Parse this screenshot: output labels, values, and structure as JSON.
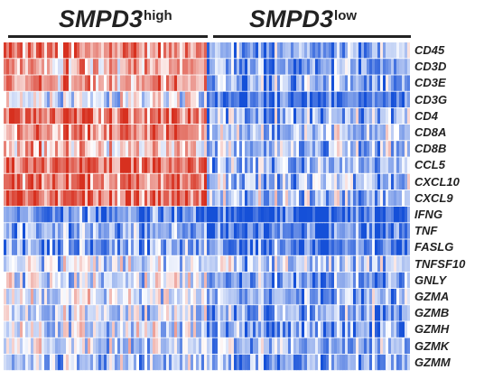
{
  "groups": {
    "high": {
      "name": "SMPD3",
      "superscript": "high"
    },
    "low": {
      "name": "SMPD3",
      "superscript": "low"
    }
  },
  "colors": {
    "high_expression": "#d7301f",
    "mid_expression": "#ffffff",
    "low_expression": "#1550d8"
  },
  "chart_data": {
    "type": "heatmap",
    "rows": [
      "CD45",
      "CD3D",
      "CD3E",
      "CD3G",
      "CD4",
      "CD8A",
      "CD8B",
      "CCL5",
      "CXCL10",
      "CXCL9",
      "IFNG",
      "TNF",
      "FASLG",
      "TNFSF10",
      "GNLY",
      "GZMA",
      "GZMB",
      "GZMH",
      "GZMK",
      "GZMM"
    ],
    "column_groups": [
      {
        "name": "SMPD3 high",
        "columns": 75
      },
      {
        "name": "SMPD3 low",
        "columns": 75
      }
    ],
    "row_mean_scores": {
      "SMPD3 high": [
        0.55,
        0.35,
        0.4,
        -0.1,
        0.65,
        0.5,
        0.25,
        0.7,
        0.6,
        0.65,
        -0.7,
        -0.55,
        -0.55,
        -0.2,
        -0.15,
        -0.1,
        -0.2,
        -0.15,
        -0.2,
        -0.3
      ],
      "SMPD3 low": [
        -0.45,
        -0.55,
        -0.5,
        -0.85,
        -0.45,
        -0.3,
        -0.35,
        -0.4,
        -0.35,
        -0.35,
        -0.95,
        -0.75,
        -0.7,
        -0.3,
        -0.55,
        -0.45,
        -0.5,
        -0.55,
        -0.45,
        -0.5
      ]
    },
    "value_range": [
      -1,
      1
    ],
    "legend": "none"
  }
}
